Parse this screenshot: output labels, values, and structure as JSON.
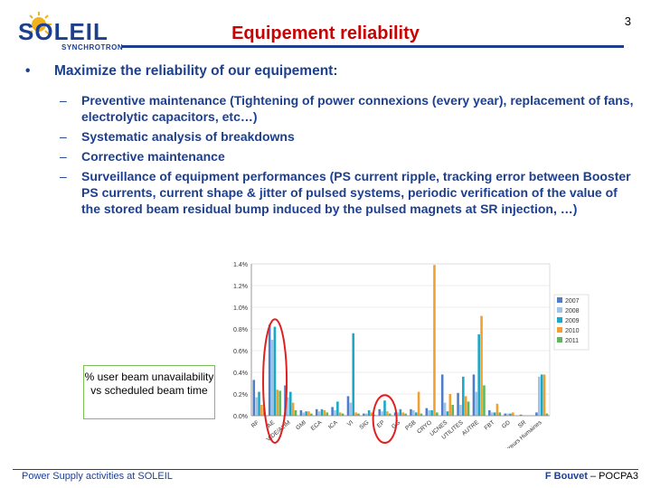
{
  "logo": {
    "word": "SOLEIL",
    "sub": "SYNCHROTRON",
    "brand_color": "#1d3f8f",
    "sun_color": "#f2b21a"
  },
  "title": "Equipement reliability",
  "page_number": "3",
  "bullet": {
    "symbol": "•",
    "text": "Maximize the reliability of our equipement:"
  },
  "sub_bullets": [
    {
      "dash": "–",
      "text": "Preventive maintenance (Tightening of power connexions (every year), replacement of fans, electrolytic capacitors, etc…)"
    },
    {
      "dash": "–",
      "text": "Systematic analysis of breakdowns"
    },
    {
      "dash": "–",
      "text": "Corrective maintenance"
    },
    {
      "dash": "–",
      "text": "Surveillance of equipment performances (PS current ripple, tracking error between Booster PS currents, current shape & jitter of pulsed systems, periodic verification of the value of the stored beam residual bump induced by the pulsed magnets at SR injection, …)"
    }
  ],
  "caption": "% user beam unavailability vs scheduled beam time",
  "footer": {
    "left": "Power Supply activities at SOLEIL",
    "author": "F Bouvet",
    "event": " – POCPA3"
  },
  "chart_data": {
    "type": "bar",
    "ylim": [
      0,
      1.4
    ],
    "yticks": [
      "0.0%",
      "0.2%",
      "0.4%",
      "0.6%",
      "0.8%",
      "1.0%",
      "1.2%",
      "1.4%"
    ],
    "grid": true,
    "legend_position": "right",
    "categories": [
      "RF",
      "AE",
      "VIDE/ALIM",
      "GMI",
      "ECA",
      "ICA",
      "VI",
      "SIG",
      "EP",
      "GG",
      "PSB",
      "CRYO",
      "UCNES",
      "UTILITES",
      "AUTRE",
      "FBT",
      "GD",
      "SR",
      "Erreurs Humaines"
    ],
    "series": [
      {
        "name": "2007",
        "color": "#4f7ec8",
        "values": [
          0.33,
          0.84,
          0.28,
          0.05,
          0.06,
          0.08,
          0.18,
          0.02,
          0.06,
          0.03,
          0.06,
          0.07,
          0.38,
          0.21,
          0.38,
          0.05,
          0.02,
          0.01,
          0.03
        ]
      },
      {
        "name": "2008",
        "color": "#9ec3e8",
        "values": [
          0.17,
          0.7,
          0.17,
          0.03,
          0.04,
          0.05,
          0.12,
          0.02,
          0.04,
          0.03,
          0.05,
          0.05,
          0.12,
          0.1,
          0.22,
          0.03,
          0.02,
          0.0,
          0.36
        ]
      },
      {
        "name": "2009",
        "color": "#19a8c8",
        "values": [
          0.22,
          0.82,
          0.22,
          0.04,
          0.06,
          0.13,
          0.76,
          0.05,
          0.14,
          0.06,
          0.03,
          0.05,
          0.04,
          0.36,
          0.75,
          0.03,
          0.02,
          0.0,
          0.38
        ]
      },
      {
        "name": "2010",
        "color": "#f0a030",
        "values": [
          0.1,
          0.24,
          0.12,
          0.04,
          0.05,
          0.03,
          0.03,
          0.03,
          0.04,
          0.03,
          0.22,
          1.39,
          0.2,
          0.18,
          0.92,
          0.11,
          0.03,
          0.0,
          0.38
        ]
      },
      {
        "name": "2011",
        "color": "#5cb85c",
        "values": [
          0.07,
          0.23,
          0.05,
          0.02,
          0.03,
          0.02,
          0.02,
          0.01,
          0.02,
          0.02,
          0.02,
          0.03,
          0.1,
          0.13,
          0.28,
          0.03,
          0.0,
          0.0,
          0.02
        ]
      }
    ],
    "highlighted_categories": [
      "AE",
      "EP"
    ],
    "highlight_color": "#e02020"
  }
}
